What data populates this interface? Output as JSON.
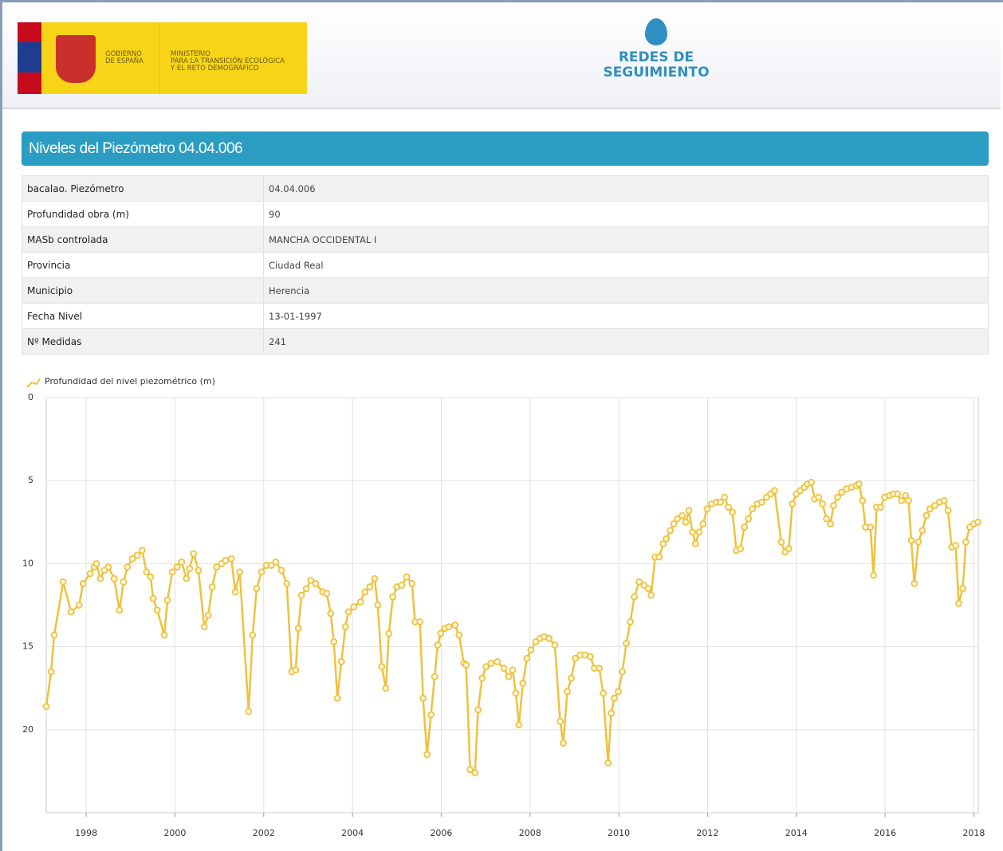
{
  "header": {
    "gov_lines": [
      "GOBIERNO",
      "DE ESPAÑA"
    ],
    "ministry_lines": [
      "MINISTERIO",
      "PARA LA TRANSICIÓN ECOLÓGICA",
      "Y EL RETO DEMOGRÁFICO"
    ],
    "brand_lines": [
      "REDES DE",
      "SEGUIMIENTO"
    ]
  },
  "panel_title": "Niveles del Piezómetro 04.04.006",
  "table": {
    "rows": [
      [
        "bacalao. Piezómetro",
        "04.04.006"
      ],
      [
        "Profundidad obra (m)",
        "90"
      ],
      [
        "MASb controlada",
        "MANCHA OCCIDENTAL I"
      ],
      [
        "Provincia",
        "Ciudad Real"
      ],
      [
        "Municipio",
        "Herencia"
      ],
      [
        "Fecha Nivel",
        "13-01-1997"
      ],
      [
        "Nº Medidas",
        "241"
      ]
    ]
  },
  "chart_data": {
    "type": "line",
    "y_inverted": true,
    "grid": true,
    "xlim": [
      1997.1,
      2018.1
    ],
    "xticks": [
      1998,
      2000,
      2002,
      2004,
      2006,
      2008,
      2010,
      2012,
      2014,
      2016,
      2018
    ],
    "ylim": [
      0,
      25
    ],
    "yticks": [
      0,
      5,
      10,
      15,
      20
    ],
    "series": [
      {
        "name": "Profundidad del nivel piezométrico (m)",
        "color": "#eec23e",
        "x": [
          1997.1,
          1997.21,
          1997.28,
          1997.48,
          1997.66,
          1997.84,
          1997.93,
          1998.09,
          1998.18,
          1998.23,
          1998.32,
          1998.41,
          1998.5,
          1998.63,
          1998.75,
          1998.84,
          1998.93,
          1999.04,
          1999.15,
          1999.26,
          1999.36,
          1999.45,
          1999.51,
          1999.6,
          1999.76,
          1999.83,
          1999.94,
          2000.05,
          2000.15,
          2000.26,
          2000.33,
          2000.42,
          2000.53,
          2000.66,
          2000.75,
          2000.84,
          2000.94,
          2001.05,
          2001.14,
          2001.27,
          2001.36,
          2001.46,
          2001.66,
          2001.75,
          2001.84,
          2001.95,
          2002.06,
          2002.17,
          2002.27,
          2002.4,
          2002.52,
          2002.63,
          2002.72,
          2002.78,
          2002.85,
          2002.96,
          2003.06,
          2003.17,
          2003.33,
          2003.42,
          2003.51,
          2003.58,
          2003.66,
          2003.75,
          2003.84,
          2003.91,
          2004.03,
          2004.18,
          2004.28,
          2004.39,
          2004.5,
          2004.57,
          2004.66,
          2004.75,
          2004.82,
          2004.91,
          2005.0,
          2005.11,
          2005.22,
          2005.34,
          2005.41,
          2005.52,
          2005.59,
          2005.68,
          2005.77,
          2005.85,
          2005.92,
          2005.99,
          2006.08,
          2006.17,
          2006.31,
          2006.4,
          2006.51,
          2006.56,
          2006.65,
          2006.76,
          2006.83,
          2006.92,
          2007.01,
          2007.12,
          2007.26,
          2007.41,
          2007.52,
          2007.61,
          2007.68,
          2007.75,
          2007.84,
          2007.93,
          2008.02,
          2008.13,
          2008.23,
          2008.32,
          2008.43,
          2008.56,
          2008.68,
          2008.75,
          2008.84,
          2008.93,
          2009.02,
          2009.13,
          2009.24,
          2009.36,
          2009.45,
          2009.56,
          2009.65,
          2009.76,
          2009.83,
          2009.9,
          2009.99,
          2010.08,
          2010.17,
          2010.26,
          2010.35,
          2010.46,
          2010.57,
          2010.66,
          2010.73,
          2010.82,
          2010.91,
          2011.0,
          2011.07,
          2011.16,
          2011.24,
          2011.32,
          2011.43,
          2011.51,
          2011.58,
          2011.66,
          2011.73,
          2011.81,
          2011.9,
          2011.99,
          2012.09,
          2012.2,
          2012.29,
          2012.38,
          2012.47,
          2012.56,
          2012.65,
          2012.74,
          2012.83,
          2012.92,
          2013.01,
          2013.12,
          2013.22,
          2013.33,
          2013.42,
          2013.51,
          2013.66,
          2013.75,
          2013.83,
          2013.91,
          2014.0,
          2014.09,
          2014.18,
          2014.25,
          2014.34,
          2014.41,
          2014.5,
          2014.59,
          2014.68,
          2014.77,
          2014.84,
          2014.93,
          2015.02,
          2015.13,
          2015.24,
          2015.35,
          2015.41,
          2015.49,
          2015.56,
          2015.67,
          2015.74,
          2015.81,
          2015.9,
          2015.99,
          2016.1,
          2016.19,
          2016.28,
          2016.37,
          2016.46,
          2016.53,
          2016.59,
          2016.66,
          2016.75,
          2016.84,
          2016.93,
          2017.01,
          2017.12,
          2017.23,
          2017.33,
          2017.42,
          2017.5,
          2017.59,
          2017.66,
          2017.75,
          2017.82,
          2017.91,
          2018.0,
          2018.09
        ],
        "values": [
          18.6,
          16.5,
          14.3,
          11.1,
          12.9,
          12.5,
          11.2,
          10.6,
          10.2,
          10.0,
          10.9,
          10.4,
          10.2,
          10.9,
          12.8,
          11.1,
          10.2,
          9.7,
          9.5,
          9.2,
          10.5,
          10.8,
          12.1,
          12.8,
          14.3,
          12.2,
          10.5,
          10.2,
          9.9,
          10.9,
          10.3,
          9.4,
          10.4,
          13.8,
          13.1,
          11.4,
          10.2,
          10.0,
          9.8,
          9.7,
          11.7,
          10.5,
          18.9,
          14.3,
          11.5,
          10.5,
          10.1,
          10.1,
          9.9,
          10.4,
          11.2,
          16.5,
          16.4,
          13.9,
          11.9,
          11.5,
          11.0,
          11.2,
          11.7,
          11.8,
          13.0,
          14.7,
          18.1,
          15.9,
          13.8,
          12.9,
          12.6,
          12.3,
          11.7,
          11.4,
          10.9,
          12.5,
          16.2,
          17.5,
          14.2,
          12.0,
          11.4,
          11.3,
          10.8,
          11.2,
          13.5,
          13.5,
          18.1,
          21.5,
          19.1,
          16.8,
          14.9,
          14.2,
          13.9,
          13.8,
          13.7,
          14.3,
          16.0,
          16.1,
          22.4,
          22.6,
          18.8,
          16.9,
          16.2,
          16.0,
          15.9,
          16.3,
          16.8,
          16.4,
          17.8,
          19.7,
          17.2,
          15.7,
          15.2,
          14.7,
          14.5,
          14.4,
          14.5,
          14.9,
          19.5,
          20.8,
          17.7,
          16.9,
          15.7,
          15.5,
          15.5,
          15.6,
          16.3,
          16.3,
          17.8,
          22.0,
          19.0,
          18.1,
          17.7,
          16.5,
          14.8,
          13.5,
          12.0,
          11.1,
          11.3,
          11.5,
          11.9,
          9.6,
          9.6,
          8.8,
          8.5,
          8.0,
          7.6,
          7.3,
          7.1,
          7.5,
          6.8,
          8.1,
          8.8,
          8.1,
          7.6,
          6.7,
          6.4,
          6.3,
          6.3,
          6.0,
          6.6,
          6.9,
          9.2,
          9.1,
          7.8,
          7.3,
          6.7,
          6.4,
          6.3,
          6.0,
          5.8,
          5.6,
          8.7,
          9.3,
          9.1,
          6.4,
          5.8,
          5.6,
          5.4,
          5.2,
          5.1,
          6.1,
          6.0,
          6.4,
          7.3,
          7.6,
          6.5,
          6.0,
          5.7,
          5.5,
          5.4,
          5.3,
          5.2,
          6.2,
          7.8,
          7.8,
          10.7,
          6.6,
          6.6,
          6.0,
          5.9,
          5.8,
          5.8,
          6.2,
          5.9,
          6.2,
          8.6,
          11.2,
          8.7,
          8.0,
          7.1,
          6.7,
          6.5,
          6.3,
          6.2,
          6.8,
          9.0,
          8.9,
          12.4,
          11.5,
          8.7,
          7.8,
          7.6,
          7.5
        ]
      }
    ]
  }
}
